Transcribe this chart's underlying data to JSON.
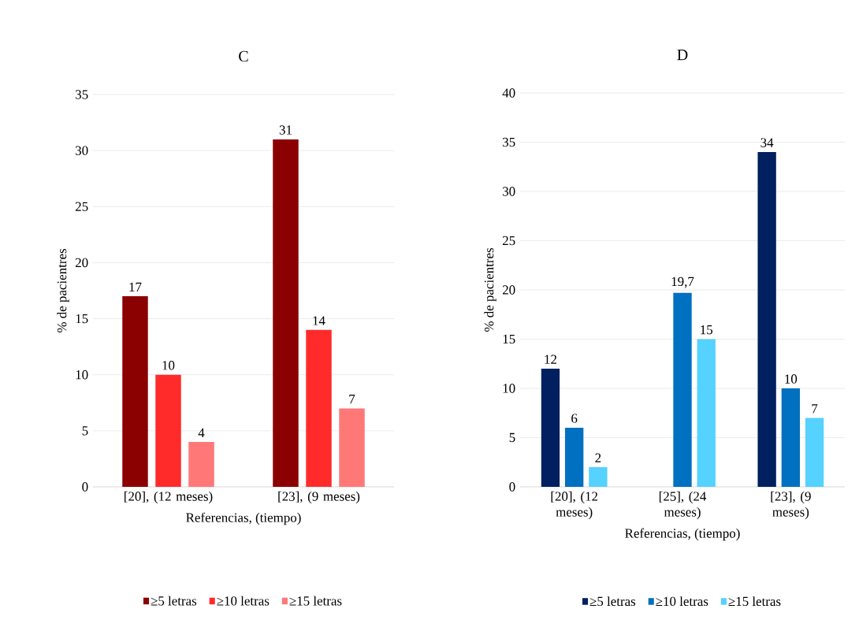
{
  "chart_data": [
    {
      "type": "bar",
      "title": "C",
      "xlabel": "Referencias, (tiempo)",
      "ylabel": "% de pacientres",
      "categories": [
        "[20], (12 meses)",
        "[23], (9 meses)"
      ],
      "series": [
        {
          "name": "≥5 letras",
          "color": "#8b0000",
          "values": [
            17,
            31
          ],
          "value_labels": [
            "17",
            "31"
          ]
        },
        {
          "name": "≥10 letras",
          "color": "#ff2b2b",
          "values": [
            10,
            14
          ],
          "value_labels": [
            "10",
            "14"
          ]
        },
        {
          "name": "≥15 letras",
          "color": "#ff7878",
          "values": [
            4,
            7
          ],
          "value_labels": [
            "4",
            "7"
          ]
        }
      ],
      "ylim": [
        0,
        35
      ],
      "yticks": [
        0,
        5,
        10,
        15,
        20,
        25,
        30,
        35
      ],
      "grid": "y",
      "legend": "bottom"
    },
    {
      "type": "bar",
      "title": "D",
      "xlabel": "Referencias, (tiempo)",
      "ylabel": "% de pacientres",
      "categories": [
        "[20], (12 meses)",
        "[25], (24 meses)",
        "[23], (9 meses)"
      ],
      "series": [
        {
          "name": "≥5 letras",
          "color": "#002060",
          "values": [
            12,
            null,
            34
          ],
          "value_labels": [
            "12",
            null,
            "34"
          ]
        },
        {
          "name": "≥10 letras",
          "color": "#0070c0",
          "values": [
            6,
            19.7,
            10
          ],
          "value_labels": [
            "6",
            "19,7",
            "10"
          ]
        },
        {
          "name": "≥15 letras",
          "color": "#55d2ff",
          "values": [
            2,
            15,
            7
          ],
          "value_labels": [
            "2",
            "15",
            "7"
          ]
        }
      ],
      "ylim": [
        0,
        40
      ],
      "yticks": [
        0,
        5,
        10,
        15,
        20,
        25,
        30,
        35,
        40
      ],
      "grid": "y",
      "legend": "bottom"
    }
  ]
}
